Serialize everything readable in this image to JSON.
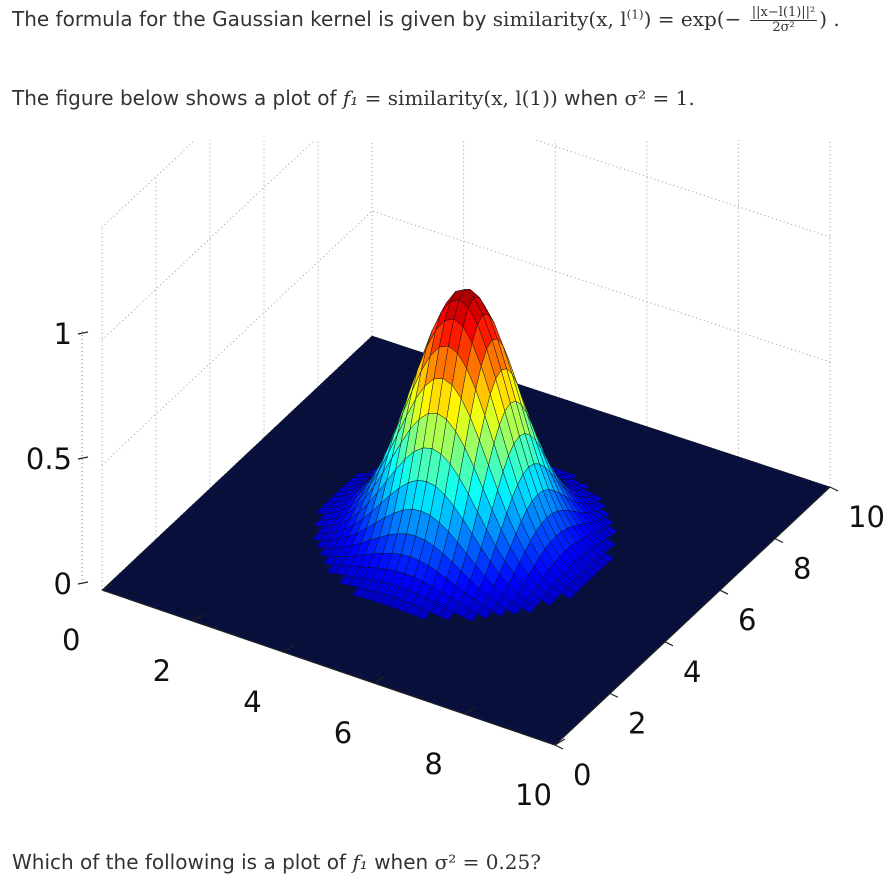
{
  "intro": {
    "lead": "The formula for the Gaussian kernel is given by",
    "lhs": "similarity(x, l",
    "superscript": "(1)",
    "eq": ") = exp(−",
    "frac_num": "||x−l(1)||²",
    "frac_den": "2σ²",
    "tail": ") ."
  },
  "figure_caption": {
    "lead": "The figure below shows a plot of",
    "f1": "f₁",
    "expr": " = similarity(x, l(1))",
    "when": "when",
    "sigma": "σ² = 1."
  },
  "question": {
    "lead": "Which of the following is a plot of",
    "f1": "f₁",
    "when": "when",
    "sigma": "σ² = 0.25?"
  },
  "chart_data": {
    "type": "surface",
    "function": "exp(-((x-5)^2 + (y-5)^2) / (2*sigma^2))",
    "sigma_squared": 1,
    "center": [
      5,
      5
    ],
    "x_ticks": [
      "0",
      "2",
      "4",
      "6",
      "8",
      "10"
    ],
    "y_ticks": [
      "0",
      "2",
      "4",
      "6",
      "8",
      "10"
    ],
    "z_ticks": [
      "0",
      "0.5",
      "1"
    ],
    "xlim": [
      0,
      10
    ],
    "ylim": [
      0,
      10
    ],
    "zlim": [
      0,
      1
    ],
    "colormap": "jet",
    "grid": true
  }
}
